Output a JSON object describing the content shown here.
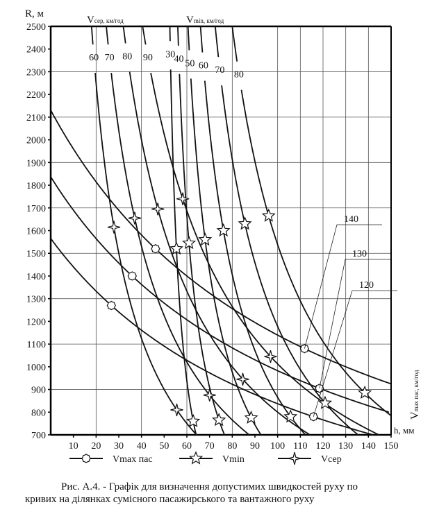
{
  "chart_data": {
    "type": "line",
    "title": "",
    "ylabel": "R, м",
    "xlabel": "h, мм",
    "xlim": [
      0,
      150
    ],
    "ylim": [
      700,
      2500
    ],
    "xticks": [
      10,
      20,
      30,
      40,
      50,
      60,
      70,
      80,
      90,
      100,
      110,
      120,
      130,
      140,
      150
    ],
    "yticks": [
      2500,
      2400,
      2300,
      2200,
      2100,
      2000,
      1900,
      1800,
      1700,
      1600,
      1500,
      1400,
      1300,
      1200,
      1100,
      1000,
      900,
      800,
      700
    ],
    "group_labels": {
      "vcer": "Vсер, км/год",
      "vmin": "Vmin, км/год",
      "vmax": "Vmax пас, км/год"
    },
    "series": [
      {
        "group": "vcer",
        "name": "60",
        "relation": "h = 12.5·V²/R",
        "markers_R": [
          1615,
          810
        ]
      },
      {
        "group": "vcer",
        "name": "70",
        "relation": "h = 12.5·V²/R",
        "markers_R": [
          1655,
          875
        ]
      },
      {
        "group": "vcer",
        "name": "80",
        "relation": "h = 12.5·V²/R",
        "markers_R": [
          1695,
          945
        ]
      },
      {
        "group": "vcer",
        "name": "90",
        "relation": "h = 12.5·V²/R",
        "markers_R": [
          1740,
          1045
        ]
      },
      {
        "group": "vmin",
        "name": "30",
        "relation": "h = 12.5·V²/R + 48",
        "markers_R": [
          1520,
          760
        ]
      },
      {
        "group": "vmin",
        "name": "40",
        "relation": "h = 12.5·V²/R + 48",
        "markers_R": [
          1545,
          765
        ]
      },
      {
        "group": "vmin",
        "name": "50",
        "relation": "h = 12.5·V²/R + 48",
        "markers_R": [
          1560,
          775
        ]
      },
      {
        "group": "vmin",
        "name": "60",
        "relation": "h = 12.5·V²/R + 48",
        "markers_R": [
          1600,
          780
        ]
      },
      {
        "group": "vmin",
        "name": "70",
        "relation": "h = 12.5·V²/R + 48",
        "markers_R": [
          1630,
          840
        ]
      },
      {
        "group": "vmin",
        "name": "80",
        "relation": "h = 12.5·V²/R + 48",
        "markers_R": [
          1665,
          885
        ]
      },
      {
        "group": "vmax",
        "name": "120",
        "relation": "h = 12.5·V²/R − 115",
        "markers_R": [
          1270,
          780
        ]
      },
      {
        "group": "vmax",
        "name": "130",
        "relation": "h = 12.5·V²/R − 115",
        "markers_R": [
          1400,
          905
        ]
      },
      {
        "group": "vmax",
        "name": "140",
        "relation": "h = 12.5·V²/R − 115",
        "markers_R": [
          1520,
          1080
        ]
      }
    ],
    "legend": [
      {
        "group": "vmax",
        "label": "Vmax пас",
        "main": "V",
        "sub": "max пас",
        "marker": "circle"
      },
      {
        "group": "vmin",
        "label": "Vmin",
        "main": "V",
        "sub": "min",
        "marker": "star"
      },
      {
        "group": "vcer",
        "label": "Vсер",
        "main": "V",
        "sub": "сер",
        "marker": "cross-star"
      }
    ],
    "legend_placement": "bottom",
    "grid": true
  },
  "axis": {
    "r_label": "R, м",
    "h_main": "h",
    "h_unit": ", мм"
  },
  "top_labels": {
    "vcer_main": "V",
    "vcer_sub": "сер, км/год",
    "vmin_main": "V",
    "vmin_sub": "min, км/год"
  },
  "right_label": {
    "main": "V",
    "sub": "max пас, км/год"
  },
  "caption": {
    "line1": "Рис. А.4.    - Графік для визначення допустимих швидкостей руху по",
    "line2": "кривих на ділянках сумісного пасажирського та вантажного руху"
  }
}
